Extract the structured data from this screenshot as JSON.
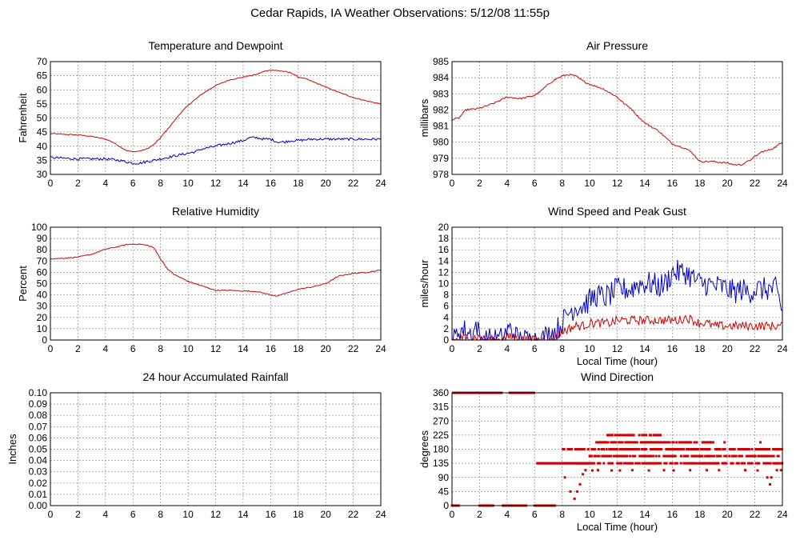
{
  "page": {
    "title": "Cedar Rapids, IA Weather Observations: 5/12/08 11:55p"
  },
  "colors": {
    "red": "#d40000",
    "blue": "#0000cc",
    "grid": "#8c8c8c",
    "frame": "#000000"
  },
  "chart_data": [
    {
      "id": "temp",
      "type": "line",
      "title": "Temperature and Dewpoint",
      "ylabel": "Fahrenheit",
      "xlabel": "",
      "xlim": [
        0,
        24
      ],
      "ylim": [
        30,
        70
      ],
      "xticks": [
        0,
        2,
        4,
        6,
        8,
        10,
        12,
        14,
        16,
        18,
        20,
        22,
        24
      ],
      "yticks": [
        30,
        35,
        40,
        45,
        50,
        55,
        60,
        65,
        70
      ],
      "grid": true,
      "series": [
        {
          "color": "#d40000",
          "noise": 0.15,
          "x": [
            0,
            1,
            2,
            3,
            4,
            4.5,
            5,
            5.5,
            6,
            6.5,
            7,
            7.5,
            8,
            8.5,
            9,
            9.5,
            10,
            10.5,
            11,
            11.5,
            12,
            12.5,
            13,
            13.5,
            14,
            14.5,
            15,
            15.5,
            16,
            16.5,
            17,
            17.5,
            18,
            18.5,
            19,
            20,
            21,
            22,
            23,
            24
          ],
          "y": [
            44.5,
            44.2,
            44,
            43.5,
            42.5,
            41.5,
            40,
            38.5,
            38,
            38.3,
            39,
            40.5,
            43,
            46,
            49,
            52,
            54.5,
            56.5,
            58.5,
            60,
            61.5,
            62.5,
            63.5,
            64,
            64.5,
            65,
            65.5,
            66.5,
            67,
            66.8,
            66.5,
            66,
            64.5,
            64,
            63,
            61,
            59,
            57.3,
            56,
            55
          ]
        },
        {
          "color": "#0000cc",
          "noise": 0.45,
          "x": [
            0,
            1,
            2,
            3,
            4,
            5,
            5.5,
            6,
            6.5,
            7,
            7.5,
            8,
            8.5,
            9,
            9.5,
            10,
            10.5,
            11,
            11.5,
            12,
            13,
            14,
            14.5,
            15,
            15.5,
            16,
            16.5,
            17,
            17.5,
            18,
            19,
            20,
            21,
            22,
            23,
            24
          ],
          "y": [
            36,
            35.7,
            35.5,
            35.5,
            35.5,
            35,
            34.5,
            34,
            34,
            34.5,
            35,
            35.5,
            36,
            36.5,
            37,
            37.5,
            38,
            39,
            39.5,
            40,
            41,
            42,
            43,
            43,
            42.5,
            42.5,
            41.5,
            41.5,
            42,
            42,
            42.5,
            42.5,
            42.5,
            42.5,
            42.5,
            42.5
          ]
        }
      ]
    },
    {
      "id": "press",
      "type": "line",
      "title": "Air Pressure",
      "ylabel": "millibars",
      "xlabel": "",
      "xlim": [
        0,
        24
      ],
      "ylim": [
        978,
        985
      ],
      "xticks": [
        0,
        2,
        4,
        6,
        8,
        10,
        12,
        14,
        16,
        18,
        20,
        22,
        24
      ],
      "yticks": [
        978,
        979,
        980,
        981,
        982,
        983,
        984,
        985
      ],
      "grid": true,
      "series": [
        {
          "color": "#d40000",
          "noise": 0.05,
          "x": [
            0,
            0.5,
            1,
            2,
            3,
            4,
            5,
            6,
            6.5,
            7,
            7.5,
            8,
            8.5,
            9,
            9.5,
            10,
            11,
            12,
            12.5,
            13,
            13.5,
            14,
            15,
            16,
            17,
            17.5,
            18,
            18.5,
            19,
            20,
            20.5,
            21,
            21.5,
            22,
            22.5,
            23,
            23.5,
            24
          ],
          "y": [
            981.4,
            981.5,
            982,
            982.1,
            982.4,
            982.8,
            982.7,
            982.9,
            983.2,
            983.6,
            983.9,
            984.1,
            984.2,
            984.1,
            983.8,
            983.6,
            983.3,
            982.8,
            982.4,
            982.1,
            981.6,
            981.2,
            980.7,
            979.9,
            979.6,
            979.3,
            978.8,
            978.8,
            978.8,
            978.7,
            978.6,
            978.6,
            978.8,
            979.1,
            979.4,
            979.5,
            979.7,
            980
          ]
        }
      ]
    },
    {
      "id": "rh",
      "type": "line",
      "title": "Relative Humidity",
      "ylabel": "Percent",
      "xlabel": "",
      "xlim": [
        0,
        24
      ],
      "ylim": [
        0,
        100
      ],
      "xticks": [
        0,
        2,
        4,
        6,
        8,
        10,
        12,
        14,
        16,
        18,
        20,
        22,
        24
      ],
      "yticks": [
        0,
        10,
        20,
        30,
        40,
        50,
        60,
        70,
        80,
        90,
        100
      ],
      "grid": true,
      "series": [
        {
          "color": "#d40000",
          "noise": 0.4,
          "x": [
            0,
            1,
            2,
            3,
            4,
            5,
            5.5,
            6,
            6.5,
            7,
            7.5,
            8,
            8.5,
            9,
            9.5,
            10,
            11,
            12,
            13,
            14,
            15,
            16,
            16.5,
            17,
            18,
            19,
            20,
            21,
            22,
            23,
            24
          ],
          "y": [
            72,
            72.5,
            73.5,
            76,
            80.5,
            83,
            84.5,
            85,
            85,
            84,
            82,
            72,
            63,
            58,
            55,
            52,
            48,
            44,
            44,
            43.5,
            43,
            40,
            39,
            41,
            45,
            47,
            50,
            57,
            59,
            60,
            62
          ]
        }
      ]
    },
    {
      "id": "wind",
      "type": "line",
      "title": "Wind Speed and Peak Gust",
      "ylabel": "miles/hour",
      "xlabel": "Local Time (hour)",
      "xlim": [
        0,
        24
      ],
      "ylim": [
        0,
        20
      ],
      "xticks": [
        0,
        2,
        4,
        6,
        8,
        10,
        12,
        14,
        16,
        18,
        20,
        22,
        24
      ],
      "yticks": [
        0,
        2,
        4,
        6,
        8,
        10,
        12,
        14,
        16,
        18,
        20
      ],
      "grid": true,
      "series": [
        {
          "color": "#0000cc",
          "noise": 2.2,
          "x": [
            0,
            0.2,
            0.5,
            1,
            1.5,
            1.8,
            2,
            2.5,
            3,
            3.5,
            4,
            4.3,
            4.8,
            5.5,
            6,
            6.5,
            7,
            7.5,
            8,
            8.5,
            9,
            9.5,
            10,
            10.5,
            11,
            11.5,
            12,
            12.5,
            13,
            13.5,
            14,
            14.5,
            15,
            15.5,
            16,
            16.5,
            17,
            17.5,
            18,
            18.5,
            19,
            19.5,
            20,
            20.5,
            21,
            21.5,
            22,
            22.5,
            23,
            23.5,
            24
          ],
          "y": [
            0,
            0,
            2,
            1.5,
            1,
            3,
            0,
            0,
            0,
            0,
            1.5,
            2,
            0,
            0,
            0,
            0,
            1,
            1.5,
            3,
            5,
            6,
            6,
            7,
            8,
            7.5,
            8,
            9,
            9,
            9,
            10,
            10,
            10,
            9.5,
            10,
            12,
            12,
            12,
            11,
            10,
            10,
            9.5,
            9.5,
            9,
            8.5,
            9,
            8.5,
            9,
            9,
            9,
            9,
            5
          ]
        },
        {
          "color": "#d40000",
          "noise": 0.8,
          "x": [
            0,
            0.5,
            1,
            1.5,
            2,
            2.5,
            3,
            3.5,
            4,
            4.5,
            5,
            5.5,
            6,
            6.5,
            7,
            7.5,
            8,
            8.5,
            9,
            9.5,
            10,
            10.5,
            11,
            11.5,
            12,
            12.5,
            13,
            13.5,
            14,
            14.5,
            15,
            15.5,
            16,
            16.5,
            17,
            17.5,
            18,
            18.5,
            19,
            19.5,
            20,
            20.5,
            21,
            21.5,
            22,
            22.5,
            23,
            23.5,
            24
          ],
          "y": [
            0,
            0,
            0.5,
            0.5,
            0.5,
            0,
            0,
            0,
            0.5,
            0.5,
            0,
            0,
            0,
            0,
            0,
            0.5,
            1.5,
            2,
            2.5,
            2.5,
            3,
            3,
            3,
            3,
            3.5,
            3.5,
            3.5,
            3.5,
            3.5,
            3.5,
            3.5,
            3.5,
            3.5,
            3.5,
            4,
            3.5,
            3,
            3,
            2.5,
            2.5,
            2.5,
            2.5,
            2.5,
            2.5,
            2.5,
            2.5,
            2.5,
            2.5,
            2.5
          ]
        }
      ]
    },
    {
      "id": "rain",
      "type": "line",
      "title": "24 hour Accumulated Rainfall",
      "ylabel": "Inches",
      "xlabel": "",
      "xlim": [
        0,
        24
      ],
      "ylim": [
        0,
        0.1
      ],
      "xticks": [
        0,
        2,
        4,
        6,
        8,
        10,
        12,
        14,
        16,
        18,
        20,
        22,
        24
      ],
      "yticks": [
        0.0,
        0.01,
        0.02,
        0.03,
        0.04,
        0.05,
        0.06,
        0.07,
        0.08,
        0.09,
        0.1
      ],
      "ytick_decimals": 2,
      "grid": true,
      "series": [
        {
          "color": "#d40000",
          "noise": 0,
          "x": [
            0,
            24
          ],
          "y": [
            0,
            0
          ]
        }
      ]
    },
    {
      "id": "dir",
      "type": "scatter",
      "title": "Wind Direction",
      "ylabel": "degrees",
      "xlabel": "Local Time (hour)",
      "xlim": [
        0,
        24
      ],
      "ylim": [
        0,
        360
      ],
      "xticks": [
        0,
        2,
        4,
        6,
        8,
        10,
        12,
        14,
        16,
        18,
        20,
        22,
        24
      ],
      "yticks": [
        0,
        45,
        90,
        135,
        180,
        225,
        270,
        315,
        360
      ],
      "grid": true,
      "series": [
        {
          "color": "#d40000",
          "marker": "square",
          "segments": [
            {
              "x0": 0.0,
              "x1": 0.5,
              "y": 0
            },
            {
              "x0": 0.1,
              "x1": 3.6,
              "y": 360
            },
            {
              "x0": 2.0,
              "x1": 3.0,
              "y": 0
            },
            {
              "x0": 3.7,
              "x1": 5.4,
              "y": 0
            },
            {
              "x0": 4.2,
              "x1": 6.0,
              "y": 360
            },
            {
              "x0": 6.0,
              "x1": 7.5,
              "y": 0
            },
            {
              "x0": 6.2,
              "x1": 10.0,
              "y": 135
            },
            {
              "x0": 8.0,
              "x1": 24.0,
              "y": 180
            },
            {
              "x0": 9.0,
              "x1": 24.0,
              "y": 135
            },
            {
              "x0": 10.0,
              "x1": 24.0,
              "y": 158
            },
            {
              "x0": 10.5,
              "x1": 19.0,
              "y": 202
            },
            {
              "x0": 11.3,
              "x1": 15.3,
              "y": 225
            }
          ],
          "points": [
            [
              8.2,
              90
            ],
            [
              8.6,
              45
            ],
            [
              8.9,
              22
            ],
            [
              9.1,
              45
            ],
            [
              9.3,
              68
            ],
            [
              9.5,
              100
            ],
            [
              9.7,
              113
            ],
            [
              10.2,
              112
            ],
            [
              10.6,
              113
            ],
            [
              11.6,
              112
            ],
            [
              12.2,
              112
            ],
            [
              13.1,
              113
            ],
            [
              14.3,
              112
            ],
            [
              15.4,
              113
            ],
            [
              16.1,
              112
            ],
            [
              17.3,
              113
            ],
            [
              18.5,
              113
            ],
            [
              19.4,
              113
            ],
            [
              21.3,
              113
            ],
            [
              22.2,
              112
            ],
            [
              22.9,
              90
            ],
            [
              23.1,
              68
            ],
            [
              23.2,
              90
            ],
            [
              23.6,
              113
            ],
            [
              23.9,
              113
            ],
            [
              17.1,
              202
            ],
            [
              17.6,
              202
            ],
            [
              18.2,
              202
            ],
            [
              19.8,
              202
            ],
            [
              22.4,
              202
            ]
          ]
        }
      ]
    }
  ]
}
